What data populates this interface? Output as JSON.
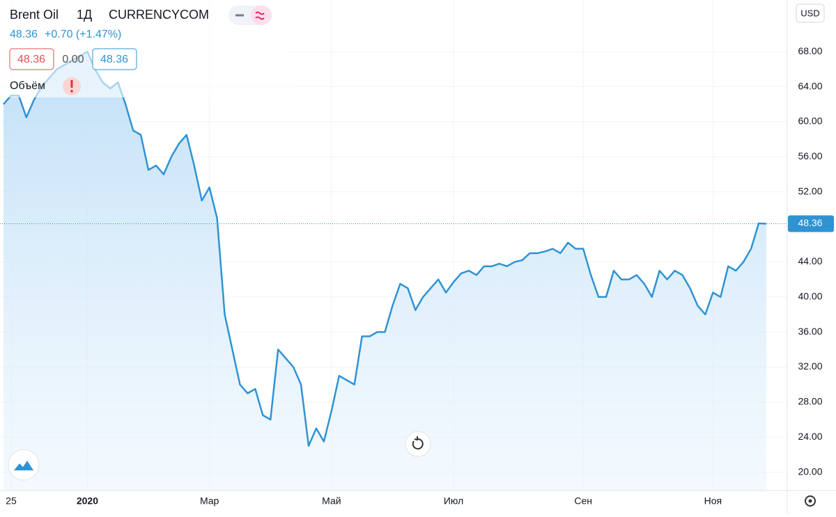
{
  "chart_data": {
    "type": "line",
    "header": {
      "symbol": "Brent Oil",
      "interval": "1Д",
      "source": "CURRENCYCOM",
      "price": "48.36",
      "change": "+0.70 (+1.47%)",
      "box_close": "48.36",
      "box_mid": "0.00",
      "box_last": "48.36",
      "volume_label": "Объём"
    },
    "currency": "USD",
    "last_price": 48.36,
    "categories": [
      null,
      "25",
      null,
      null,
      null,
      null,
      null,
      null,
      null,
      null,
      null,
      "2020",
      null,
      null,
      null,
      null,
      null,
      null,
      null,
      null,
      null,
      null,
      null,
      null,
      null,
      null,
      null,
      "Мар",
      null,
      null,
      null,
      null,
      null,
      null,
      null,
      null,
      null,
      null,
      null,
      null,
      null,
      null,
      null,
      "Май",
      null,
      null,
      null,
      null,
      null,
      null,
      null,
      null,
      null,
      null,
      null,
      null,
      null,
      null,
      null,
      "Июл",
      null,
      null,
      null,
      null,
      null,
      null,
      null,
      null,
      null,
      null,
      null,
      null,
      null,
      null,
      null,
      null,
      "Сен",
      null,
      null,
      null,
      null,
      null,
      null,
      null,
      null,
      null,
      null,
      null,
      null,
      null,
      null,
      null,
      null,
      "Ноя",
      null,
      null,
      null,
      null,
      null,
      null,
      null
    ],
    "series": [
      {
        "name": "Brent Oil",
        "color": "#2f93d3",
        "values": [
          62,
          63,
          63,
          60.5,
          62.5,
          64,
          65,
          66,
          66.5,
          67,
          67.5,
          68,
          66,
          64.5,
          63.8,
          64.5,
          62,
          59,
          58.5,
          54.5,
          55,
          54,
          56,
          57.5,
          58.5,
          55,
          51,
          52.5,
          49,
          38,
          34,
          30,
          29,
          29.5,
          26.5,
          26,
          34,
          33,
          32,
          30,
          23,
          25,
          23.5,
          27,
          31,
          30.5,
          30,
          35.5,
          35.5,
          36,
          36,
          39,
          41.5,
          41,
          38.5,
          40,
          41,
          42,
          40.5,
          41.7,
          42.7,
          43,
          42.5,
          43.5,
          43.5,
          43.8,
          43.5,
          44,
          44.2,
          45,
          45,
          45.2,
          45.5,
          45,
          46.2,
          45.5,
          45.5,
          42.5,
          40,
          40,
          43,
          42,
          42,
          42.5,
          41.5,
          40,
          43,
          42,
          43,
          42.5,
          41,
          39,
          38,
          40.5,
          40,
          43.5,
          43,
          44,
          45.5,
          48.4,
          48.36
        ]
      }
    ],
    "ylim": [
      17.9,
      73.9
    ],
    "yticks": [
      {
        "value": 20,
        "label": "20.00"
      },
      {
        "value": 24,
        "label": "24.00"
      },
      {
        "value": 28,
        "label": "28.00"
      },
      {
        "value": 32,
        "label": "32.00"
      },
      {
        "value": 36,
        "label": "36.00"
      },
      {
        "value": 40,
        "label": "40.00"
      },
      {
        "value": 44,
        "label": "44.00"
      },
      {
        "value": 52,
        "label": "52.00"
      },
      {
        "value": 56,
        "label": "56.00"
      },
      {
        "value": 60,
        "label": "60.00"
      },
      {
        "value": 64,
        "label": "64.00"
      },
      {
        "value": 68,
        "label": "68.00"
      }
    ],
    "grid": true
  }
}
